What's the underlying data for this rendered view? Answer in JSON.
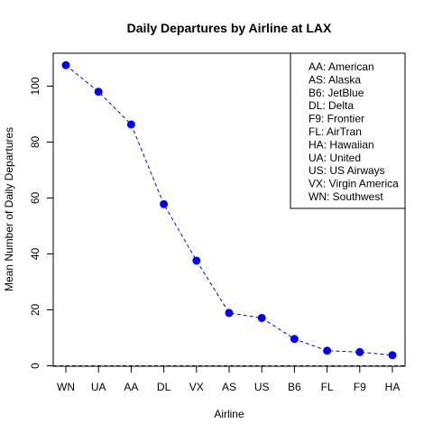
{
  "chart_data": {
    "type": "line",
    "title": "Daily Departures by Airline at LAX",
    "xlabel": "Airline",
    "ylabel": "Mean Number of Daily Departures",
    "categories": [
      "WN",
      "UA",
      "AA",
      "DL",
      "VX",
      "AS",
      "US",
      "B6",
      "FL",
      "F9",
      "HA"
    ],
    "series": [
      {
        "values": [
          107.5,
          98,
          86.3,
          57.8,
          37.6,
          18.9,
          17.1,
          9.6,
          5.4,
          4.9,
          3.8
        ]
      }
    ],
    "ylim": [
      0,
      110
    ],
    "yticks": [
      0,
      20,
      40,
      60,
      80,
      100
    ],
    "grid": false,
    "reference_line": 0,
    "line_color": "#0000FF",
    "point_color": "#0000FF",
    "legend": {
      "position": "top-right",
      "entries": [
        "AA: American",
        "AS: Alaska",
        "B6: JetBlue",
        "DL: Delta",
        "F9: Frontier",
        "FL: AirTran",
        "HA: Hawaiian",
        "UA: United",
        "US: US Airways",
        "VX: Virgin America",
        "WN: Southwest"
      ]
    }
  }
}
